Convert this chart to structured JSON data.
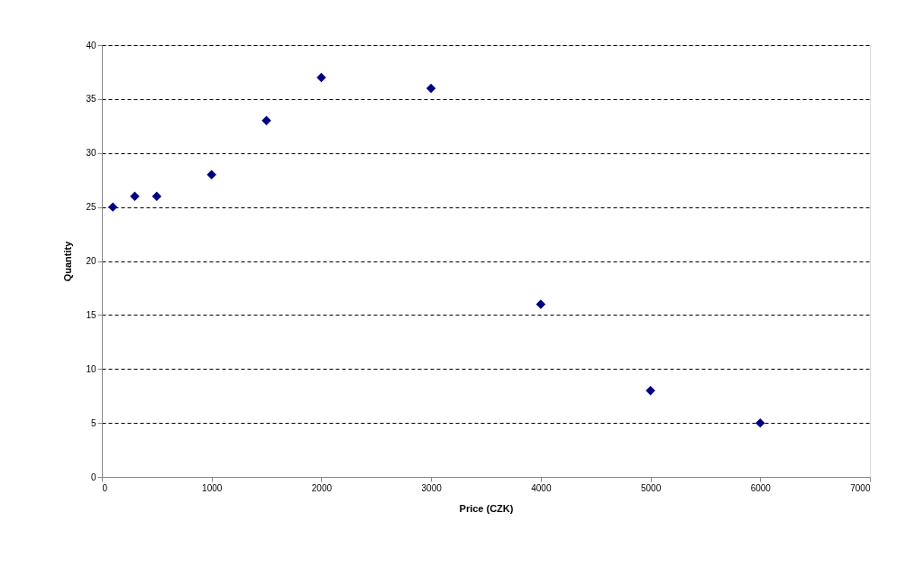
{
  "chart_data": {
    "type": "scatter",
    "xlabel": "Price (CZK)",
    "ylabel": "Quantity",
    "x": [
      100,
      300,
      500,
      1000,
      1500,
      2000,
      3000,
      4000,
      5000,
      6000
    ],
    "series": [
      {
        "color": "#000080",
        "values": [
          25,
          26,
          26,
          28,
          33,
          37,
          36,
          16,
          8,
          5
        ]
      }
    ],
    "xlim": [
      0,
      7000
    ],
    "xticks": [
      0,
      1000,
      2000,
      3000,
      4000,
      5000,
      6000,
      7000
    ],
    "ylim": [
      0,
      40
    ],
    "yticks": [
      0,
      5,
      10,
      15,
      20,
      25,
      30,
      35,
      40
    ],
    "grid": "y",
    "marker": "diamond"
  }
}
